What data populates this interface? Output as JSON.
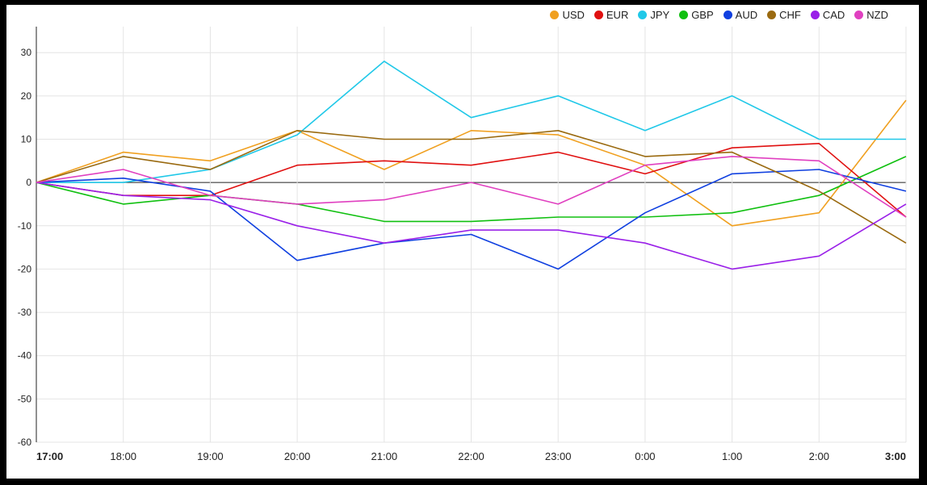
{
  "chart_data": {
    "type": "line",
    "x": [
      "17:00",
      "18:00",
      "19:00",
      "20:00",
      "21:00",
      "22:00",
      "23:00",
      "0:00",
      "1:00",
      "2:00",
      "3:00"
    ],
    "y_ticks": [
      "30",
      "20",
      "10",
      "0",
      "-10",
      "-20",
      "-30",
      "-40",
      "-50",
      "-60"
    ],
    "ylim": [
      -60,
      36
    ],
    "grid": true,
    "legend_position": "top-right",
    "series": [
      {
        "name": "USD",
        "color": "#f0a020",
        "values": [
          0,
          7,
          5,
          12,
          3,
          12,
          11,
          4,
          -10,
          -7,
          19
        ]
      },
      {
        "name": "EUR",
        "color": "#e01010",
        "values": [
          0,
          -3,
          -3,
          4,
          5,
          4,
          7,
          2,
          8,
          9,
          -8
        ]
      },
      {
        "name": "JPY",
        "color": "#20c8e8",
        "values": [
          0,
          0,
          3,
          11,
          28,
          15,
          20,
          12,
          20,
          10,
          10
        ]
      },
      {
        "name": "GBP",
        "color": "#10c010",
        "values": [
          0,
          -5,
          -3,
          -5,
          -9,
          -9,
          -8,
          -8,
          -7,
          -3,
          6
        ]
      },
      {
        "name": "AUD",
        "color": "#1040e0",
        "values": [
          0,
          1,
          -2,
          -18,
          -14,
          -12,
          -20,
          -7,
          2,
          3,
          -2
        ]
      },
      {
        "name": "CHF",
        "color": "#9a6a10",
        "values": [
          0,
          6,
          3,
          12,
          10,
          10,
          12,
          6,
          7,
          -2,
          -14
        ]
      },
      {
        "name": "CAD",
        "color": "#9a20e8",
        "values": [
          0,
          -3,
          -4,
          -10,
          -14,
          -11,
          -11,
          -14,
          -20,
          -17,
          -5
        ]
      },
      {
        "name": "NZD",
        "color": "#e040c0",
        "values": [
          0,
          3,
          -3,
          -5,
          -4,
          0,
          -5,
          4,
          6,
          5,
          -8
        ]
      }
    ]
  }
}
